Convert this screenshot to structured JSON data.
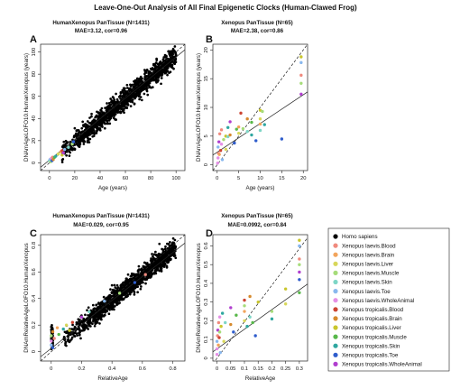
{
  "figure_title": "Leave-One-Out Analysis of All Final Epigenetic Clocks (Human-Clawed Frog)",
  "legend": {
    "entries": [
      {
        "label": "Homo sapiens",
        "color": "#000000"
      },
      {
        "label": "Xenopus laevis.Blood",
        "color": "#f08a7e"
      },
      {
        "label": "Xenopus laevis.Brain",
        "color": "#f2a45c"
      },
      {
        "label": "Xenopus laevis.Liver",
        "color": "#d8d75a"
      },
      {
        "label": "Xenopus laevis.Muscle",
        "color": "#a6dc7a"
      },
      {
        "label": "Xenopus laevis.Skin",
        "color": "#7ed6c6"
      },
      {
        "label": "Xenopus laevis.Toe",
        "color": "#89b8ee"
      },
      {
        "label": "Xenopus laevis.WholeAnimal",
        "color": "#e590e6"
      },
      {
        "label": "Xenopus tropicalis.Blood",
        "color": "#cc4433"
      },
      {
        "label": "Xenopus tropicalis.Brain",
        "color": "#d68a2e"
      },
      {
        "label": "Xenopus tropicalis.Liver",
        "color": "#c9c62c"
      },
      {
        "label": "Xenopus tropicalis.Muscle",
        "color": "#58b84a"
      },
      {
        "label": "Xenopus tropicalis.Skin",
        "color": "#2fa7a0"
      },
      {
        "label": "Xenopus tropicalis.Toe",
        "color": "#2f5dcc"
      },
      {
        "label": "Xenopus tropicalis.WholeAnimal",
        "color": "#b13fcf"
      }
    ]
  },
  "chart_data": [
    {
      "type": "scatter",
      "letter": "A",
      "title": "HumanXenopus PanTissue (N=1431)",
      "stat": "MAE=3.12, cor=0.96",
      "xlabel": "Age (years)",
      "ylabel": "DNAmAgeLOFO10.HumanXenopus (years)",
      "xlim": [
        -7,
        107
      ],
      "ylim": [
        -7,
        107
      ],
      "xticks": [
        0,
        20,
        40,
        60,
        80,
        100
      ],
      "yticks": [
        0,
        20,
        40,
        60,
        80,
        100
      ],
      "lines": [
        {
          "style": "dashed",
          "slope": 1,
          "intercept": 0
        },
        {
          "style": "solid",
          "slope": 0.93,
          "intercept": 2.5
        }
      ],
      "human_cloud": {
        "x_range": [
          0,
          100
        ],
        "density": "high",
        "trend": "linear ~1:1",
        "spread_sd": 4.5
      },
      "points": [
        {
          "x": 0,
          "y": 2,
          "g": 5
        },
        {
          "x": 0.5,
          "y": 3,
          "g": 6
        },
        {
          "x": 1,
          "y": 1,
          "g": 4
        },
        {
          "x": 1.5,
          "y": 4,
          "g": 7
        },
        {
          "x": 2,
          "y": 2,
          "g": 13
        },
        {
          "x": 2.5,
          "y": 5,
          "g": 1
        },
        {
          "x": 3,
          "y": 3,
          "g": 9
        },
        {
          "x": 4,
          "y": 5,
          "g": 11
        },
        {
          "x": 5,
          "y": 6,
          "g": 12
        },
        {
          "x": 7,
          "y": 8,
          "g": 3
        },
        {
          "x": 9,
          "y": 10,
          "g": 2
        },
        {
          "x": 10,
          "y": 7,
          "g": 10
        },
        {
          "x": 10,
          "y": 11,
          "g": 8
        },
        {
          "x": 11,
          "y": 9,
          "g": 14
        },
        {
          "x": 12,
          "y": 12,
          "g": 6
        },
        {
          "x": 15,
          "y": 14,
          "g": 5
        },
        {
          "x": 18,
          "y": 17,
          "g": 4
        },
        {
          "x": 19,
          "y": 19,
          "g": 13
        }
      ]
    },
    {
      "type": "scatter",
      "letter": "B",
      "title": "Xenopus PanTissue (N=65)",
      "stat": "MAE=2.38, cor=0.86",
      "xlabel": "Age (years)",
      "ylabel": "DNAmAgeLOFO10.HumanXenopus (years)",
      "xlim": [
        -1,
        21
      ],
      "ylim": [
        -1,
        21
      ],
      "xticks": [
        0,
        5,
        10,
        15,
        20
      ],
      "yticks": [
        0,
        5,
        10,
        15,
        20
      ],
      "lines": [
        {
          "style": "dashed",
          "slope": 1,
          "intercept": 0
        },
        {
          "style": "solid",
          "slope": 0.5,
          "intercept": 2.2
        }
      ],
      "points": [
        {
          "x": 0.1,
          "y": 0.3,
          "g": 7
        },
        {
          "x": 0.2,
          "y": 1.2,
          "g": 7
        },
        {
          "x": 0.3,
          "y": 2.0,
          "g": 1
        },
        {
          "x": 0.2,
          "y": 3.1,
          "g": 6
        },
        {
          "x": 0.4,
          "y": 4.0,
          "g": 14
        },
        {
          "x": 0.5,
          "y": 1.8,
          "g": 2
        },
        {
          "x": 0.6,
          "y": 5.4,
          "g": 1
        },
        {
          "x": 0.8,
          "y": 2.5,
          "g": 8
        },
        {
          "x": 1.0,
          "y": 6.1,
          "g": 1
        },
        {
          "x": 1.0,
          "y": 3.6,
          "g": 7
        },
        {
          "x": 1.2,
          "y": 0.9,
          "g": 6
        },
        {
          "x": 1.5,
          "y": 4.4,
          "g": 4
        },
        {
          "x": 2.0,
          "y": 5.0,
          "g": 10
        },
        {
          "x": 2.0,
          "y": 2.7,
          "g": 3
        },
        {
          "x": 2.5,
          "y": 6.5,
          "g": 12
        },
        {
          "x": 2.5,
          "y": 4.9,
          "g": 5
        },
        {
          "x": 3.0,
          "y": 7.5,
          "g": 14
        },
        {
          "x": 3.0,
          "y": 5.2,
          "g": 9
        },
        {
          "x": 4.0,
          "y": 3.8,
          "g": 13
        },
        {
          "x": 4.5,
          "y": 6.2,
          "g": 11
        },
        {
          "x": 5.0,
          "y": 6.6,
          "g": 2
        },
        {
          "x": 5.0,
          "y": 5.5,
          "g": 3
        },
        {
          "x": 5.5,
          "y": 9.0,
          "g": 8
        },
        {
          "x": 6.0,
          "y": 6.3,
          "g": 4
        },
        {
          "x": 7.0,
          "y": 5.8,
          "g": 5
        },
        {
          "x": 7.0,
          "y": 8.0,
          "g": 9
        },
        {
          "x": 8.0,
          "y": 5.2,
          "g": 12
        },
        {
          "x": 8.0,
          "y": 7.4,
          "g": 11
        },
        {
          "x": 9.0,
          "y": 4.2,
          "g": 13
        },
        {
          "x": 10.0,
          "y": 9.5,
          "g": 10
        },
        {
          "x": 10.0,
          "y": 8.0,
          "g": 3
        },
        {
          "x": 10.0,
          "y": 7.1,
          "g": 2
        },
        {
          "x": 10.0,
          "y": 6.0,
          "g": 5
        },
        {
          "x": 10.5,
          "y": 9.3,
          "g": 4
        },
        {
          "x": 11.0,
          "y": 7.0,
          "g": 12
        },
        {
          "x": 15.0,
          "y": 4.5,
          "g": 13
        },
        {
          "x": 19.5,
          "y": 17.8,
          "g": 6
        },
        {
          "x": 19.5,
          "y": 15.6,
          "g": 1
        },
        {
          "x": 19.5,
          "y": 18.8,
          "g": 10
        },
        {
          "x": 19.5,
          "y": 12.3,
          "g": 14
        },
        {
          "x": 19.5,
          "y": 14.2,
          "g": 4
        }
      ]
    },
    {
      "type": "scatter",
      "letter": "C",
      "title": "HumanXenopus PanTissue (N=1431)",
      "stat": "MAE=0.029, cor=0.95",
      "xlabel": "RelativeAge",
      "ylabel": "DNAmRelativeAgeLOFO10.HumanXenopus",
      "xlim": [
        -0.07,
        0.88
      ],
      "ylim": [
        -0.07,
        0.88
      ],
      "xticks": [
        0.0,
        0.2,
        0.4,
        0.6,
        0.8
      ],
      "yticks": [
        0.0,
        0.2,
        0.4,
        0.6,
        0.8
      ],
      "lines": [
        {
          "style": "dashed",
          "slope": 1,
          "intercept": 0
        },
        {
          "style": "solid",
          "slope": 0.9,
          "intercept": 0.025
        }
      ],
      "human_cloud": {
        "x_range": [
          0.0,
          0.82
        ],
        "density": "high",
        "trend": "linear ~1:1",
        "spread_sd": 0.035
      },
      "points": [
        {
          "x": 0.0,
          "y": 0.05,
          "g": 6
        },
        {
          "x": 0.0,
          "y": 0.08,
          "g": 7
        },
        {
          "x": 0.0,
          "y": 0.12,
          "g": 4
        },
        {
          "x": 0.01,
          "y": 0.03,
          "g": 13
        },
        {
          "x": 0.01,
          "y": 0.15,
          "g": 9
        },
        {
          "x": 0.02,
          "y": 0.1,
          "g": 1
        },
        {
          "x": 0.04,
          "y": 0.18,
          "g": 2
        },
        {
          "x": 0.05,
          "y": 0.13,
          "g": 11
        },
        {
          "x": 0.08,
          "y": 0.17,
          "g": 12
        },
        {
          "x": 0.1,
          "y": 0.2,
          "g": 3
        },
        {
          "x": 0.12,
          "y": 0.16,
          "g": 10
        },
        {
          "x": 0.14,
          "y": 0.22,
          "g": 8
        },
        {
          "x": 0.2,
          "y": 0.26,
          "g": 14
        },
        {
          "x": 0.25,
          "y": 0.3,
          "g": 5
        },
        {
          "x": 0.35,
          "y": 0.38,
          "g": 6
        },
        {
          "x": 0.45,
          "y": 0.44,
          "g": 4
        },
        {
          "x": 0.55,
          "y": 0.52,
          "g": 13
        },
        {
          "x": 0.62,
          "y": 0.58,
          "g": 1
        }
      ]
    },
    {
      "type": "scatter",
      "letter": "D",
      "title": "Xenopus PanTissue (N=65)",
      "stat": "MAE=0.0992, cor=0.84",
      "xlabel": "RelativeAge",
      "ylabel": "DNAmRelativeAgeLOFO10.HumanXenopus",
      "xlim": [
        -0.015,
        0.33
      ],
      "ylim": [
        -0.015,
        0.66
      ],
      "xticks": [
        0.0,
        0.05,
        0.1,
        0.15,
        0.2,
        0.25,
        0.3
      ],
      "yticks": [
        0.0,
        0.1,
        0.2,
        0.3,
        0.4,
        0.5,
        0.6
      ],
      "lines": [
        {
          "style": "dashed",
          "slope": 1.95,
          "intercept": 0.0
        },
        {
          "style": "solid",
          "slope": 1.05,
          "intercept": 0.05
        }
      ],
      "points": [
        {
          "x": 0.0,
          "y": 0.02,
          "g": 7
        },
        {
          "x": 0.0,
          "y": 0.05,
          "g": 7
        },
        {
          "x": 0.0,
          "y": 0.09,
          "g": 6
        },
        {
          "x": 0.002,
          "y": 0.12,
          "g": 1
        },
        {
          "x": 0.003,
          "y": 0.15,
          "g": 14
        },
        {
          "x": 0.005,
          "y": 0.07,
          "g": 2
        },
        {
          "x": 0.006,
          "y": 0.19,
          "g": 1
        },
        {
          "x": 0.008,
          "y": 0.11,
          "g": 8
        },
        {
          "x": 0.01,
          "y": 0.22,
          "g": 7
        },
        {
          "x": 0.01,
          "y": 0.14,
          "g": 4
        },
        {
          "x": 0.012,
          "y": 0.03,
          "g": 6
        },
        {
          "x": 0.015,
          "y": 0.17,
          "g": 10
        },
        {
          "x": 0.02,
          "y": 0.24,
          "g": 12
        },
        {
          "x": 0.025,
          "y": 0.09,
          "g": 3
        },
        {
          "x": 0.03,
          "y": 0.19,
          "g": 5
        },
        {
          "x": 0.05,
          "y": 0.27,
          "g": 14
        },
        {
          "x": 0.05,
          "y": 0.18,
          "g": 9
        },
        {
          "x": 0.06,
          "y": 0.14,
          "g": 13
        },
        {
          "x": 0.07,
          "y": 0.23,
          "g": 11
        },
        {
          "x": 0.1,
          "y": 0.31,
          "g": 8
        },
        {
          "x": 0.1,
          "y": 0.25,
          "g": 2
        },
        {
          "x": 0.1,
          "y": 0.2,
          "g": 3
        },
        {
          "x": 0.1,
          "y": 0.28,
          "g": 4
        },
        {
          "x": 0.11,
          "y": 0.17,
          "g": 12
        },
        {
          "x": 0.12,
          "y": 0.33,
          "g": 9
        },
        {
          "x": 0.12,
          "y": 0.22,
          "g": 5
        },
        {
          "x": 0.13,
          "y": 0.19,
          "g": 11
        },
        {
          "x": 0.14,
          "y": 0.12,
          "g": 13
        },
        {
          "x": 0.15,
          "y": 0.3,
          "g": 10
        },
        {
          "x": 0.2,
          "y": 0.25,
          "g": 4
        },
        {
          "x": 0.2,
          "y": 0.21,
          "g": 12
        },
        {
          "x": 0.25,
          "y": 0.37,
          "g": 10
        },
        {
          "x": 0.25,
          "y": 0.29,
          "g": 3
        },
        {
          "x": 0.3,
          "y": 0.6,
          "g": 6
        },
        {
          "x": 0.3,
          "y": 0.53,
          "g": 1
        },
        {
          "x": 0.3,
          "y": 0.63,
          "g": 10
        },
        {
          "x": 0.3,
          "y": 0.46,
          "g": 14
        },
        {
          "x": 0.3,
          "y": 0.5,
          "g": 4
        },
        {
          "x": 0.3,
          "y": 0.42,
          "g": 13
        },
        {
          "x": 0.3,
          "y": 0.35,
          "g": 11
        }
      ]
    }
  ]
}
